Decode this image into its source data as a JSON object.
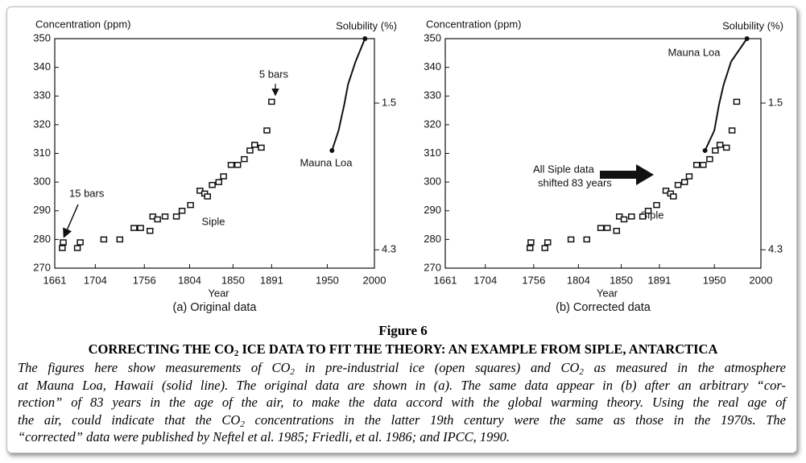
{
  "chart_data": [
    {
      "type": "scatter",
      "ylabel": "Concentration (ppm)",
      "y2label": "Solubility (%)",
      "xlabel": "Year",
      "subtitle": "(a) Original data",
      "xlim": [
        1661,
        2000
      ],
      "xticks": [
        1661,
        1704,
        1756,
        1804,
        1850,
        1891,
        1950,
        2000
      ],
      "ylim": [
        270,
        350
      ],
      "yticks": [
        270,
        280,
        290,
        300,
        310,
        320,
        330,
        340,
        350
      ],
      "y2lim": [
        4.65,
        0.27
      ],
      "y2ticks": [
        1.5,
        4.3
      ],
      "series": [
        {
          "style": "squares",
          "color": "#111111",
          "x": [
            1669,
            1670,
            1685,
            1688,
            1713,
            1730,
            1745,
            1752,
            1762,
            1765,
            1770,
            1778,
            1790,
            1796,
            1805,
            1815,
            1820,
            1823,
            1828,
            1835,
            1840,
            1848,
            1855,
            1862,
            1868,
            1873,
            1880,
            1886,
            1891
          ],
          "values": [
            277,
            279,
            277,
            279,
            280,
            280,
            284,
            284,
            283,
            288,
            287,
            288,
            288,
            290,
            292,
            297,
            296,
            295,
            299,
            300,
            302,
            306,
            306,
            308,
            311,
            313,
            312,
            318,
            328
          ]
        },
        {
          "style": "line",
          "color": "#111111",
          "x": [
            1955,
            1962,
            1968,
            1972,
            1980,
            1990
          ],
          "values": [
            311,
            318,
            327,
            334,
            342,
            350
          ]
        }
      ],
      "annotations": [
        {
          "text": "5 bars"
        },
        {
          "text": "15 bars"
        },
        {
          "text": "Siple"
        },
        {
          "text": "Mauna Loa"
        }
      ]
    },
    {
      "type": "scatter",
      "ylabel": "Concentration (ppm)",
      "y2label": "Solubility (%)",
      "xlabel": "Year",
      "subtitle": "(b) Corrected data",
      "xlim": [
        1661,
        2000
      ],
      "xticks": [
        1661,
        1704,
        1756,
        1804,
        1850,
        1891,
        1950,
        2000
      ],
      "ylim": [
        270,
        350
      ],
      "yticks": [
        270,
        280,
        290,
        300,
        310,
        320,
        330,
        340,
        350
      ],
      "y2lim": [
        4.65,
        0.27
      ],
      "y2ticks": [
        1.5,
        4.3
      ],
      "series": [
        {
          "style": "squares",
          "color": "#111111",
          "x": [
            1752,
            1753,
            1768,
            1771,
            1796,
            1813,
            1828,
            1835,
            1845,
            1848,
            1853,
            1861,
            1873,
            1879,
            1888,
            1898,
            1903,
            1906,
            1911,
            1918,
            1923,
            1931,
            1938,
            1945,
            1951,
            1956,
            1963,
            1969,
            1974
          ],
          "values": [
            277,
            279,
            277,
            279,
            280,
            280,
            284,
            284,
            283,
            288,
            287,
            288,
            288,
            290,
            292,
            297,
            296,
            295,
            299,
            300,
            302,
            306,
            306,
            308,
            311,
            313,
            312,
            318,
            328
          ]
        },
        {
          "style": "line",
          "color": "#111111",
          "x": [
            1940,
            1950,
            1955,
            1960,
            1968,
            1985
          ],
          "values": [
            311,
            318,
            327,
            334,
            342,
            350
          ]
        }
      ],
      "annotations": [
        {
          "text": "Mauna Loa"
        },
        {
          "text": "All Siple data"
        },
        {
          "text": "shifted 83 years"
        },
        {
          "text": "Siple"
        }
      ]
    }
  ],
  "figure": {
    "label": "Figure 6",
    "title": [
      "CORRECTING THE CO",
      {
        "sub": "2"
      },
      " ICE DATA TO FIT THE THEORY: AN EXAMPLE FROM SIPLE, ANTARCTICA"
    ],
    "caption": [
      [
        "The figures here show measurements of CO",
        {
          "sub": "2"
        },
        " in pre-industrial ice (open squares) and CO",
        {
          "sub": "2"
        },
        " as measured in the atmosphere"
      ],
      [
        "at Mauna Loa, Hawaii (solid line). The original data are shown in (a). The same data appear in (b) after an arbitrary “cor-"
      ],
      [
        "rection” of 83 years in the age of the air, to make the data accord with the global warming theory. Using the real age of"
      ],
      [
        "the air, could indicate that the CO",
        {
          "sub": "2"
        },
        " concentrations in the latter 19th century were the same as those in the 1970s. The"
      ],
      [
        "“corrected” data were published by Neftel et al. 1985; Friedli, et al. 1986; and IPCC, 1990."
      ]
    ]
  }
}
